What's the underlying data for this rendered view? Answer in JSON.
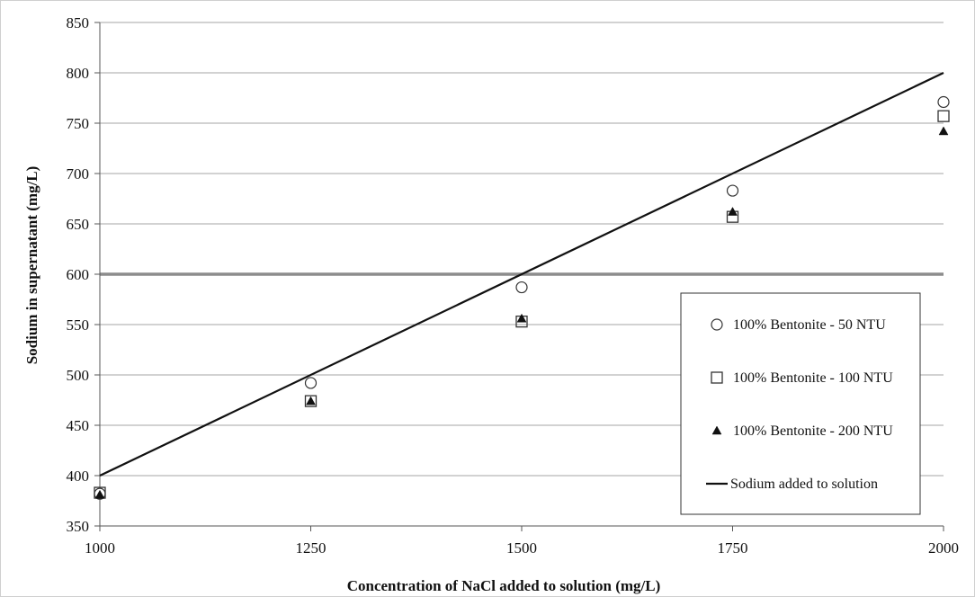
{
  "chart_data": {
    "type": "scatter",
    "xlabel": "Concentration of NaCl added to solution (mg/L)",
    "ylabel": "Sodium in supernatant (mg/L)",
    "xlim": [
      1000,
      2000
    ],
    "ylim": [
      350,
      850
    ],
    "x_ticks": [
      1000,
      1250,
      1500,
      1750,
      2000
    ],
    "y_ticks": [
      350,
      400,
      450,
      500,
      550,
      600,
      650,
      700,
      750,
      800,
      850
    ],
    "grid": "horizontal",
    "legend_position": "right-inside",
    "reference_line_y": 600,
    "series": [
      {
        "name": "100% Bentonite - 50 NTU",
        "marker": "circle",
        "x": [
          1000,
          1250,
          1500,
          1750,
          2000
        ],
        "y": [
          382,
          492,
          587,
          683,
          771
        ]
      },
      {
        "name": "100% Bentonite - 100 NTU",
        "marker": "square",
        "x": [
          1000,
          1250,
          1500,
          1750,
          2000
        ],
        "y": [
          383,
          474,
          553,
          657,
          757
        ]
      },
      {
        "name": "100% Bentonite - 200 NTU",
        "marker": "triangle",
        "x": [
          1000,
          1250,
          1500,
          1750,
          2000
        ],
        "y": [
          381,
          474,
          556,
          662,
          742
        ]
      },
      {
        "name": "Sodium added to solution",
        "marker": "line",
        "x": [
          1000,
          2000
        ],
        "y": [
          400,
          800
        ]
      }
    ],
    "colors": {
      "line": "#111111",
      "grid": "#a6a6a6",
      "reference": "#8c8c8c"
    }
  }
}
